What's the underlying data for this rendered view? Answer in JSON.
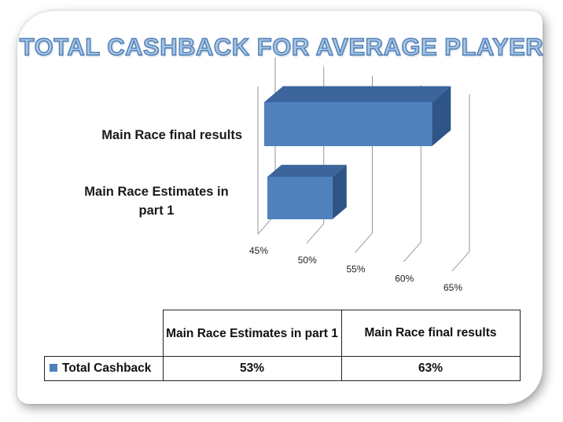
{
  "chart_data": {
    "type": "bar",
    "orientation": "horizontal",
    "title": "TOTAL CASHBACK FOR AVERAGE PLAYER",
    "categories": [
      "Main Race final results",
      "Main Race Estimates in part 1"
    ],
    "series": [
      {
        "name": "Total Cashback",
        "values": [
          0.63,
          0.53
        ],
        "display": [
          "63%",
          "53%"
        ]
      }
    ],
    "xticks": [
      "45%",
      "50%",
      "55%",
      "60%",
      "65%"
    ],
    "xlim": [
      0.45,
      0.65
    ],
    "grid": true,
    "style": "3d",
    "bar_color": "#4f81bd"
  },
  "table": {
    "headers": [
      "Main Race Estimates in part 1",
      "Main Race final results"
    ],
    "row_label": "Total Cashback",
    "values": [
      "53%",
      "63%"
    ]
  }
}
